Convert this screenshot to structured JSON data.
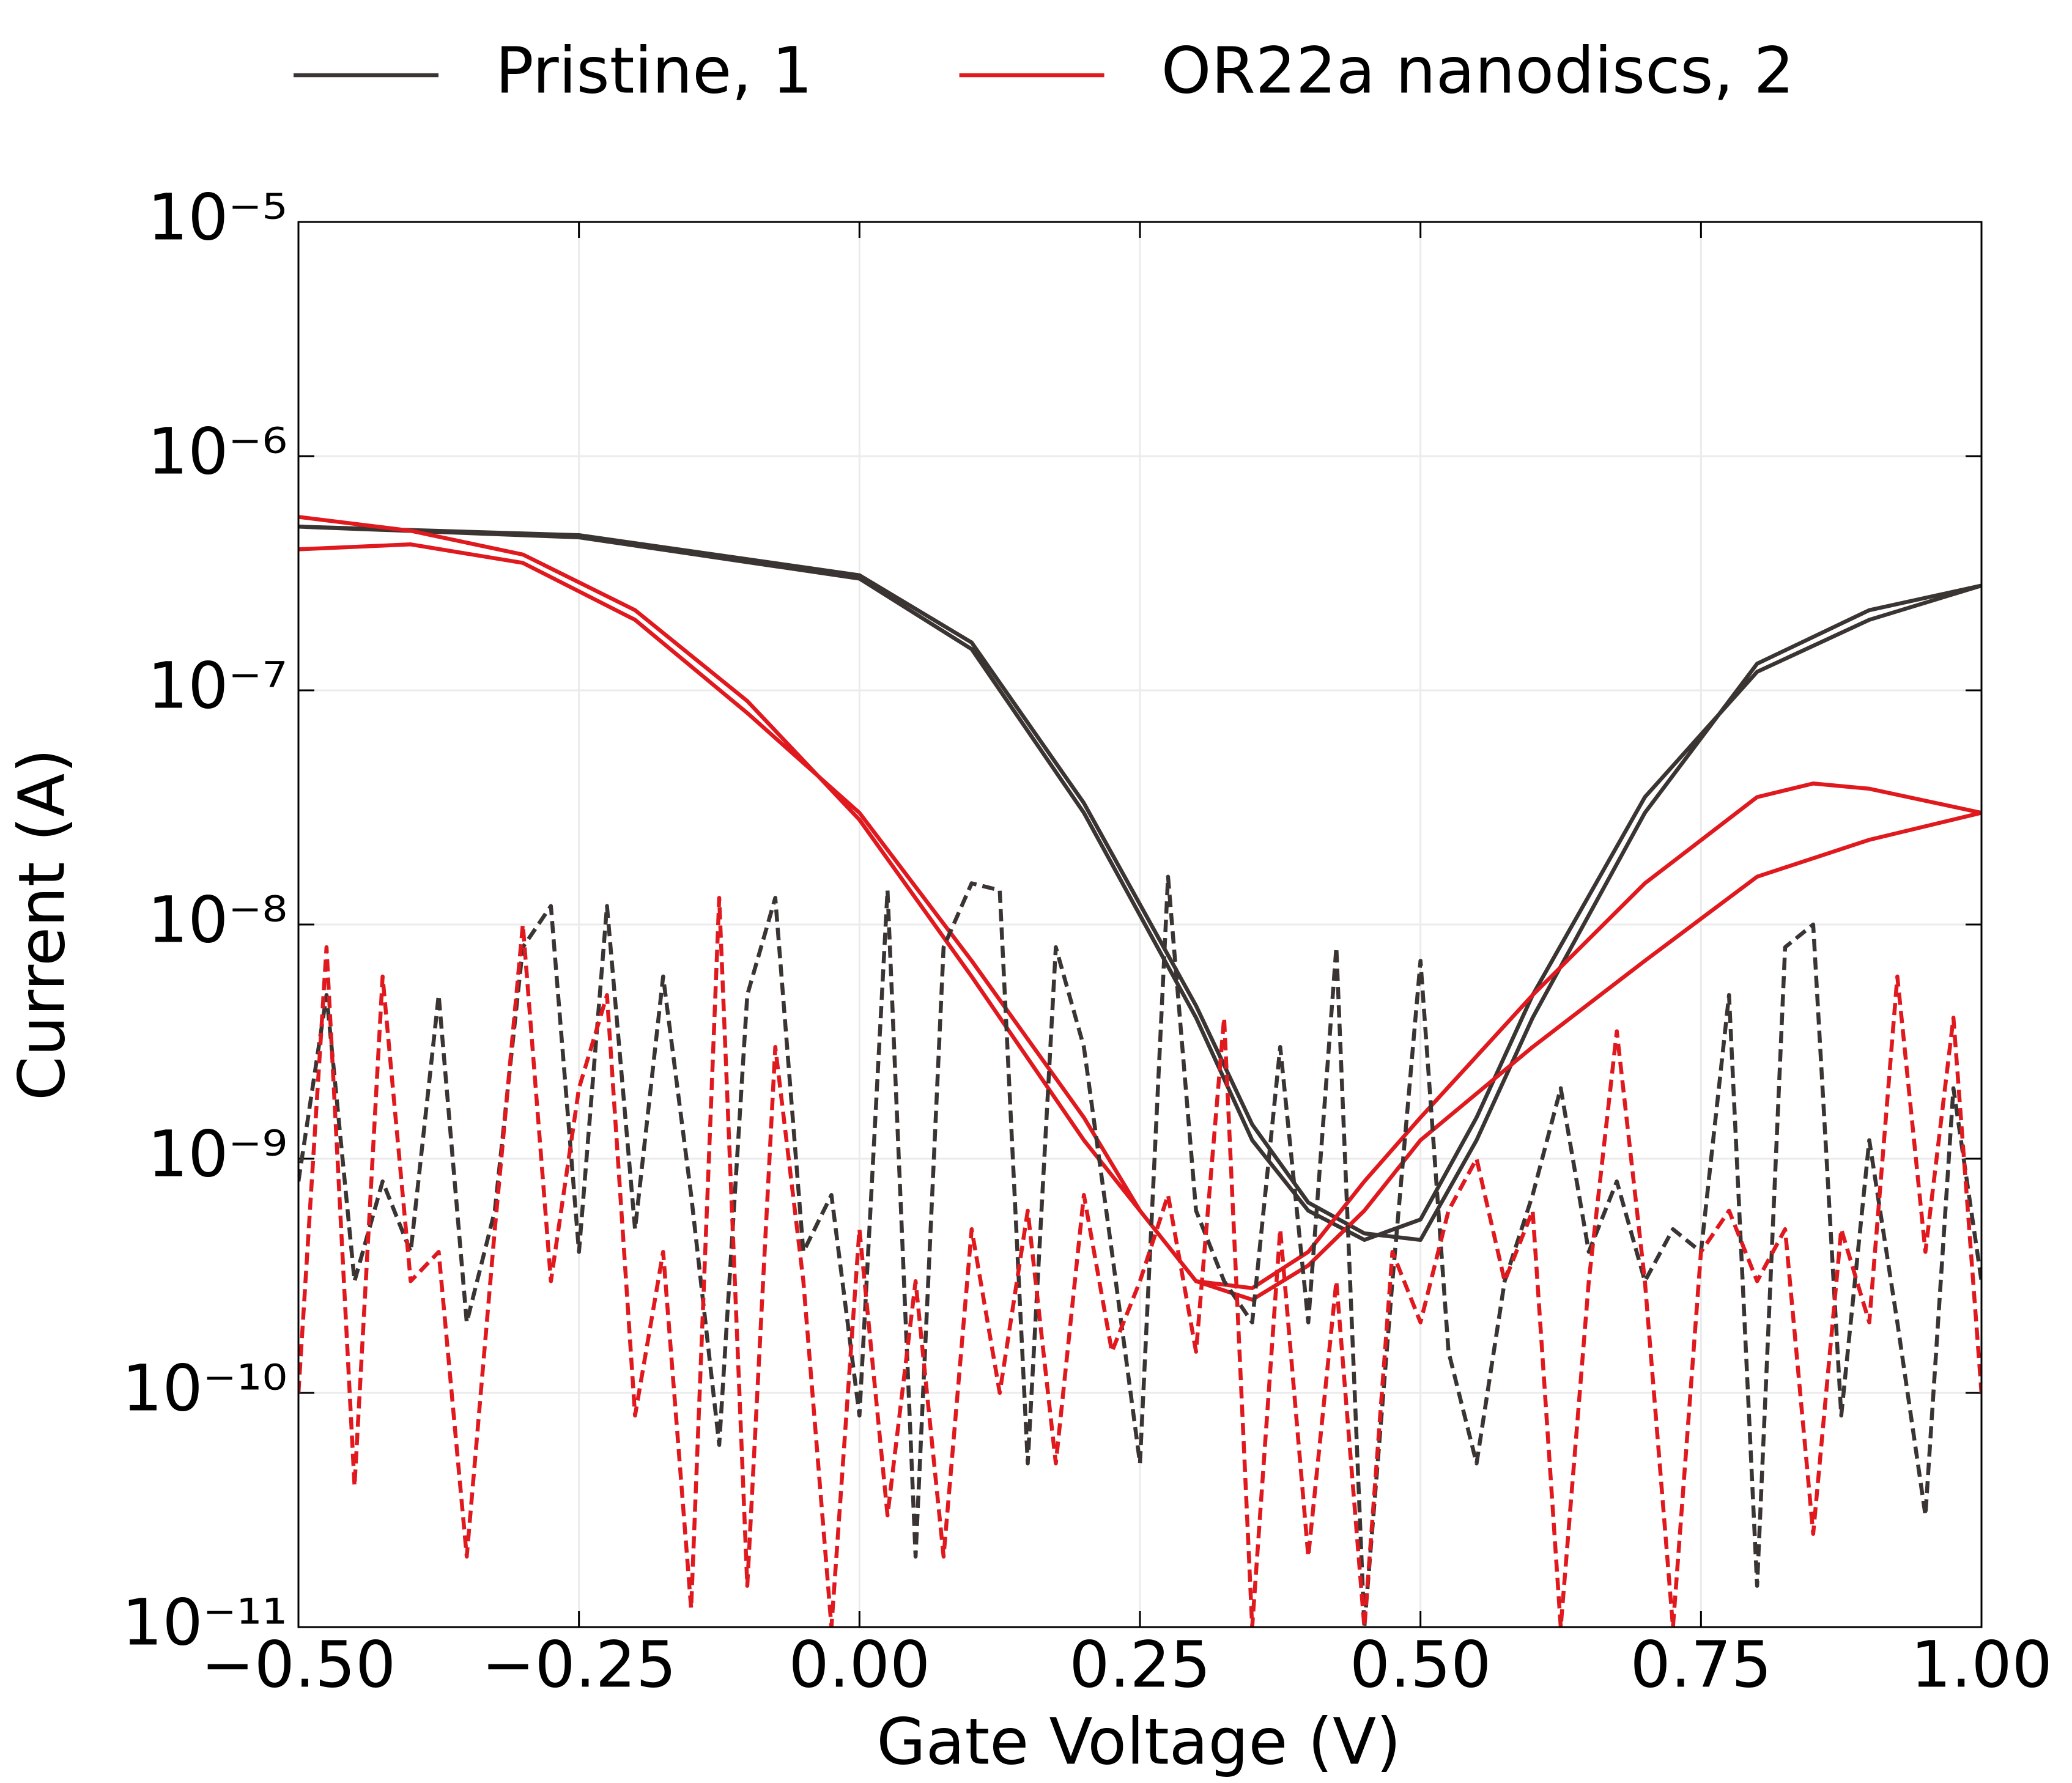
{
  "chart_data": {
    "type": "line",
    "x_label": "Gate Voltage (V)",
    "y_label": "Current (A)",
    "y_scale": "log",
    "grid": true,
    "legend": "top",
    "xlim": [
      -0.5,
      1.0
    ],
    "ylim": [
      1e-11,
      1e-05
    ],
    "xticks": [
      {
        "value": -0.5,
        "label": "−0.50"
      },
      {
        "value": -0.25,
        "label": "−0.25"
      },
      {
        "value": 0,
        "label": "0.00"
      },
      0.25,
      {
        "value": 0.5,
        "label": "0.50"
      },
      0.75,
      {
        "value": 1.0,
        "label": "1.00"
      }
    ],
    "yticks": [
      {
        "value": 1e-11,
        "label": "10⁻¹¹"
      },
      {
        "value": 1e-10,
        "label": "10⁻¹⁰"
      },
      {
        "value": 1e-09,
        "label": "10⁻⁹"
      },
      {
        "value": 1e-08,
        "label": "10⁻⁸"
      },
      {
        "value": 1e-07,
        "label": "10⁻⁷"
      },
      {
        "value": 1e-06,
        "label": "10⁻⁶"
      },
      {
        "value": 1e-05,
        "label": "10⁻⁵"
      }
    ],
    "series": [
      {
        "name": "Pristine, 1",
        "color": "#3a3432",
        "dash": false,
        "x": [
          -0.5,
          -0.25,
          0,
          0.1,
          0.2,
          0.3,
          0.35,
          0.4,
          0.45,
          0.5,
          0.55,
          0.6,
          0.7,
          0.8,
          0.9,
          1.0,
          0.9,
          0.8,
          0.7,
          0.6,
          0.55,
          0.5,
          0.45,
          0.4,
          0.35,
          0.3,
          0.2,
          0.1,
          0,
          -0.25,
          -0.5
        ],
        "values": [
          5e-07,
          4.5e-07,
          3e-07,
          1.5e-07,
          3e-08,
          4e-09,
          1.2e-09,
          6e-10,
          4.5e-10,
          5.5e-10,
          1.5e-09,
          5e-09,
          3.5e-08,
          1.2e-07,
          2e-07,
          2.8e-07,
          2.2e-07,
          1.3e-07,
          3e-08,
          4e-09,
          1.2e-09,
          4.5e-10,
          4.8e-10,
          6.5e-10,
          1.4e-09,
          4.5e-09,
          3.3e-08,
          1.6e-07,
          3.1e-07,
          4.6e-07,
          5e-07
        ]
      },
      {
        "name": "OR22a nanodiscs, 2",
        "color": "#e0191e",
        "dash": false,
        "x": [
          -0.5,
          -0.4,
          -0.3,
          -0.2,
          -0.1,
          0,
          0.1,
          0.2,
          0.25,
          0.3,
          0.35,
          0.4,
          0.45,
          0.5,
          0.6,
          0.7,
          0.8,
          0.85,
          0.9,
          1.0,
          0.9,
          0.8,
          0.7,
          0.6,
          0.5,
          0.45,
          0.4,
          0.35,
          0.3,
          0.2,
          0.1,
          0,
          -0.1,
          -0.2,
          -0.3,
          -0.4,
          -0.5
        ],
        "values": [
          4e-07,
          4.2e-07,
          3.5e-07,
          2e-07,
          8e-08,
          3e-08,
          7e-09,
          1.5e-09,
          6e-10,
          3e-10,
          2.8e-10,
          4e-10,
          8e-10,
          1.5e-09,
          5e-09,
          1.5e-08,
          3.5e-08,
          4e-08,
          3.8e-08,
          3e-08,
          2.3e-08,
          1.6e-08,
          7e-09,
          3e-09,
          1.2e-09,
          6e-10,
          3.5e-10,
          2.5e-10,
          3e-10,
          1.2e-09,
          6e-09,
          2.8e-08,
          9e-08,
          2.2e-07,
          3.8e-07,
          4.8e-07,
          5.5e-07
        ]
      },
      {
        "color": "#3a3432",
        "dash": true,
        "x": [
          -0.5,
          -0.475,
          -0.45,
          -0.425,
          -0.4,
          -0.375,
          -0.35,
          -0.325,
          -0.3,
          -0.275,
          -0.25,
          -0.225,
          -0.2,
          -0.175,
          -0.15,
          -0.125,
          -0.1,
          -0.075,
          -0.05,
          -0.025,
          0,
          0.025,
          0.05,
          0.075,
          0.1,
          0.125,
          0.15,
          0.175,
          0.2,
          0.225,
          0.25,
          0.275,
          0.3,
          0.325,
          0.35,
          0.375,
          0.4,
          0.425,
          0.45,
          0.475,
          0.5,
          0.525,
          0.55,
          0.575,
          0.6,
          0.625,
          0.65,
          0.675,
          0.7,
          0.725,
          0.75,
          0.775,
          0.8,
          0.825,
          0.85,
          0.875,
          0.9,
          0.925,
          0.95,
          0.975,
          1.0
        ],
        "values": [
          8e-10,
          5e-09,
          3e-10,
          8e-10,
          4e-10,
          5e-09,
          2e-10,
          6e-10,
          8e-09,
          1.2e-08,
          4e-10,
          1.2e-08,
          5e-10,
          6e-09,
          7e-10,
          6e-11,
          5e-09,
          1.3e-08,
          4e-10,
          7e-10,
          8e-11,
          1.4e-08,
          2e-11,
          8e-09,
          1.5e-08,
          1.4e-08,
          5e-11,
          8e-09,
          3e-09,
          4e-10,
          5e-11,
          1.6e-08,
          6e-10,
          3e-10,
          2e-10,
          3e-09,
          2e-10,
          8e-09,
          1e-11,
          3e-10,
          7e-09,
          1.5e-10,
          5e-11,
          3e-10,
          7e-10,
          2e-09,
          4e-10,
          8e-10,
          3e-10,
          5e-10,
          4e-10,
          5e-09,
          1.5e-11,
          8e-09,
          1e-08,
          8e-11,
          1.2e-09,
          2e-10,
          3e-11,
          2e-09,
          3e-10
        ]
      },
      {
        "color": "#e0191e",
        "dash": true,
        "x": [
          -0.5,
          -0.475,
          -0.45,
          -0.425,
          -0.4,
          -0.375,
          -0.35,
          -0.325,
          -0.3,
          -0.275,
          -0.25,
          -0.225,
          -0.2,
          -0.175,
          -0.15,
          -0.125,
          -0.1,
          -0.075,
          -0.05,
          -0.025,
          0,
          0.025,
          0.05,
          0.075,
          0.1,
          0.125,
          0.15,
          0.175,
          0.2,
          0.225,
          0.25,
          0.275,
          0.3,
          0.325,
          0.35,
          0.375,
          0.4,
          0.425,
          0.45,
          0.475,
          0.5,
          0.525,
          0.55,
          0.575,
          0.6,
          0.625,
          0.65,
          0.675,
          0.7,
          0.725,
          0.75,
          0.775,
          0.8,
          0.825,
          0.85,
          0.875,
          0.9,
          0.925,
          0.95,
          0.975,
          1.0
        ],
        "values": [
          1e-10,
          8e-09,
          4e-11,
          6e-09,
          3e-10,
          4e-10,
          2e-11,
          5e-10,
          1e-08,
          3e-10,
          2e-09,
          5e-09,
          8e-11,
          4e-10,
          1.2e-11,
          1.3e-08,
          1.5e-11,
          3e-09,
          3e-10,
          1e-11,
          5e-10,
          3e-11,
          3e-10,
          2e-11,
          5e-10,
          1e-10,
          6e-10,
          5e-11,
          7e-10,
          1.5e-10,
          3e-10,
          7e-10,
          1.5e-10,
          4e-09,
          1e-11,
          5e-10,
          2e-11,
          3e-10,
          1e-11,
          4e-10,
          2e-10,
          6e-10,
          1e-09,
          3e-10,
          6e-10,
          1e-11,
          3e-10,
          3.5e-09,
          3e-10,
          1e-11,
          4e-10,
          6e-10,
          3e-10,
          5e-10,
          2.5e-11,
          5e-10,
          2e-10,
          6e-09,
          4e-10,
          4e-09,
          1e-10
        ]
      }
    ]
  }
}
